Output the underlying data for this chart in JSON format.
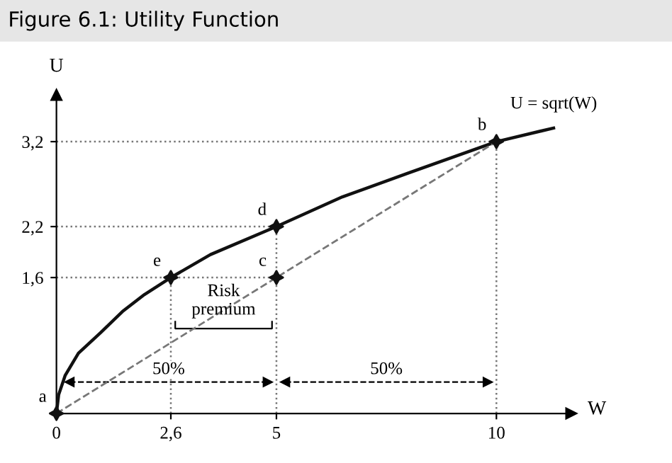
{
  "chart_data": {
    "type": "line",
    "title": "Figure 6.1: Utility Function",
    "xlabel": "W",
    "ylabel": "U",
    "xlim": [
      0,
      11.7
    ],
    "ylim": [
      0,
      3.75
    ],
    "xticks": [
      0,
      {
        "value": 2.6,
        "label": "2,6"
      },
      5,
      10
    ],
    "yticks": [
      {
        "value": 1.6,
        "label": "1,6"
      },
      {
        "value": 2.2,
        "label": "2,2"
      },
      {
        "value": 3.2,
        "label": "3,2"
      }
    ],
    "series": [
      {
        "name": "U = sqrt(W)",
        "color": "#111111",
        "line_style": "solid",
        "x": [
          0,
          0.05,
          0.2,
          0.5,
          1,
          1.5,
          2,
          2.6,
          3.5,
          5,
          6.5,
          8,
          10,
          11.3
        ],
        "values": [
          0,
          0.22,
          0.45,
          0.71,
          0.95,
          1.2,
          1.4,
          1.6,
          1.87,
          2.2,
          2.55,
          2.83,
          3.2,
          3.36
        ]
      },
      {
        "color": "#777777",
        "line_style": "dashed",
        "x": [
          0,
          10
        ],
        "values": [
          0,
          3.2
        ]
      },
      {
        "type": "scatter",
        "color": "#111111",
        "marker": "star",
        "x": [
          0,
          10,
          5,
          5,
          2.6
        ],
        "values": [
          0,
          3.2,
          1.6,
          2.2,
          1.6
        ]
      }
    ],
    "ref_lines": [
      {
        "axis": "y",
        "value": 1.6,
        "line_style": "dotted",
        "color": "#777777"
      },
      {
        "axis": "y",
        "value": 2.2,
        "line_style": "dotted",
        "color": "#777777"
      },
      {
        "axis": "y",
        "value": 3.2,
        "line_style": "dotted",
        "color": "#777777"
      },
      {
        "axis": "x",
        "value": 2.6,
        "line_style": "dotted",
        "color": "#777777"
      },
      {
        "axis": "x",
        "value": 5,
        "line_style": "dotted",
        "color": "#777777"
      },
      {
        "axis": "x",
        "value": 10,
        "line_style": "dotted",
        "color": "#777777"
      }
    ],
    "annotations": [
      {
        "text": "a",
        "x": 0,
        "y": 0
      },
      {
        "text": "b",
        "x": 10,
        "y": 3.2
      },
      {
        "text": "c",
        "x": 5,
        "y": 1.6
      },
      {
        "text": "d",
        "x": 5,
        "y": 2.2
      },
      {
        "text": "e",
        "x": 2.6,
        "y": 1.6
      },
      "Risk\npremium",
      "50%",
      "50%"
    ],
    "grid": false,
    "legend": false
  }
}
